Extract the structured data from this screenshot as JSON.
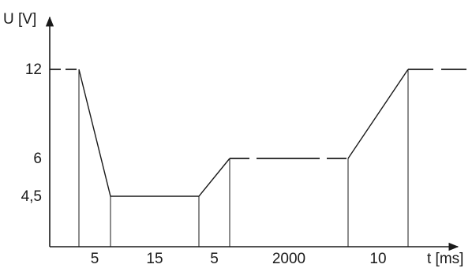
{
  "chart_data": {
    "type": "line",
    "title": "",
    "ylabel": "U [V]",
    "xlabel": "t [ms]",
    "yticks": [
      {
        "value": 12,
        "label": "12"
      },
      {
        "value": 6,
        "label": "6"
      },
      {
        "value": 4.5,
        "label": "4,5"
      }
    ],
    "interval_labels": [
      "5",
      "15",
      "5",
      "2000",
      "10"
    ],
    "series": [
      {
        "points": [
          {
            "segment": 0,
            "t": 0,
            "u": 12
          },
          {
            "segment": 0,
            "t": 1,
            "u": 4.5
          },
          {
            "segment": 1,
            "t": 1,
            "u": 4.5
          },
          {
            "segment": 1,
            "t": 2,
            "u": 4.5
          },
          {
            "segment": 2,
            "t": 2,
            "u": 4.5
          },
          {
            "segment": 2,
            "t": 3,
            "u": 6
          },
          {
            "segment": 3,
            "t": 3,
            "u": 6
          },
          {
            "segment": 3,
            "t": 4,
            "u": 6
          },
          {
            "segment": 4,
            "t": 4,
            "u": 6
          },
          {
            "segment": 4,
            "t": 5,
            "u": 12
          }
        ]
      }
    ],
    "levels_before_after": {
      "start": 12,
      "end": 12
    },
    "dashed_segments": [
      "before start",
      "segment 3 (2000 ms)",
      "after end"
    ]
  }
}
